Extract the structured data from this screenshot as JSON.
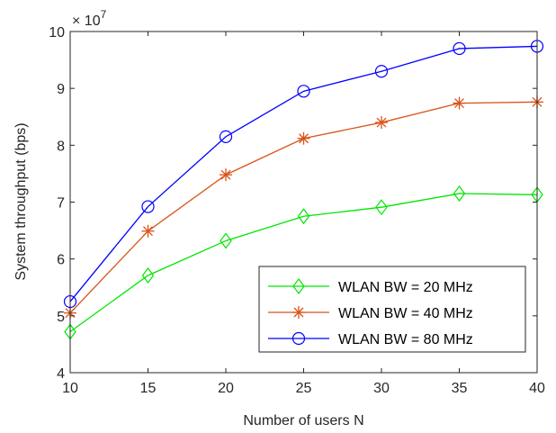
{
  "chart_data": {
    "type": "line",
    "xlabel": "Number of users N",
    "ylabel": "System throughput (bps)",
    "y_exponent_label": "× 10",
    "y_exponent_power": "7",
    "xlim": [
      10,
      40
    ],
    "ylim": [
      4,
      10
    ],
    "y_scale_multiplier": 10000000,
    "xticks": [
      10,
      15,
      20,
      25,
      30,
      35,
      40
    ],
    "yticks": [
      4,
      5,
      6,
      7,
      8,
      9,
      10
    ],
    "grid": false,
    "legend_position": "bottom-right",
    "x": [
      10,
      15,
      20,
      25,
      30,
      35,
      40
    ],
    "series": [
      {
        "name": "WLAN BW = 20 MHz",
        "color": "#00e600",
        "marker": "diamond",
        "values": [
          4.72,
          5.71,
          6.32,
          6.75,
          6.91,
          7.15,
          7.13
        ]
      },
      {
        "name": "WLAN BW = 40 MHz",
        "color": "#d95319",
        "marker": "asterisk",
        "values": [
          5.05,
          6.49,
          7.48,
          8.12,
          8.4,
          8.74,
          8.76
        ]
      },
      {
        "name": "WLAN BW = 80 MHz",
        "color": "#0000ff",
        "marker": "circle",
        "values": [
          5.25,
          6.92,
          8.15,
          8.95,
          9.3,
          9.7,
          9.74
        ]
      }
    ]
  }
}
